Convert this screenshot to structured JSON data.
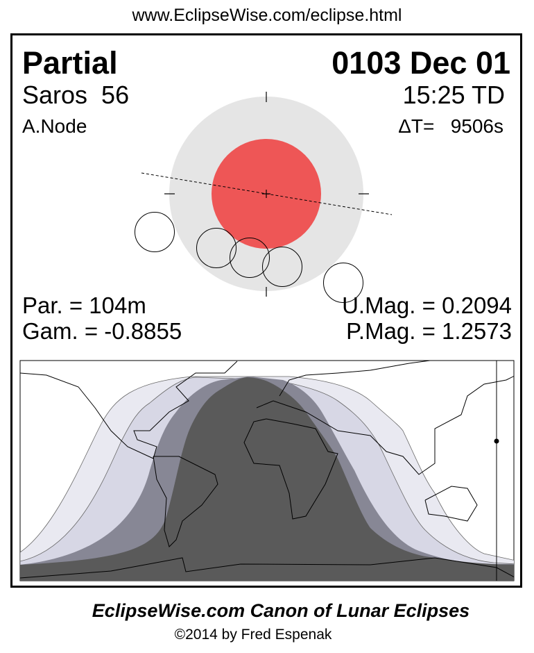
{
  "header": {
    "url": "www.EclipseWise.com/eclipse.html"
  },
  "eclipse": {
    "type": "Partial",
    "date": "0103 Dec 01",
    "saros": "Saros  56",
    "time": "15:25 TD",
    "node": "A.Node",
    "delta_t": "ΔT=   9506s",
    "partial_duration": "Par. = 104m",
    "gamma": "Gam. = -0.8855",
    "umbral_magnitude": "U.Mag. = 0.2094",
    "penumbral_magnitude": "P.Mag. = 1.2573"
  },
  "colors": {
    "umbra": "#ee5656",
    "penumbra": "#e5e5e5",
    "map_penumbral_outer": "#e9e9f1",
    "map_penumbral_inner": "#d7d7e5",
    "map_partial": "#878795",
    "map_umbral": "#5a5a5a"
  },
  "footer": {
    "title": "EclipseWise.com Canon of Lunar Eclipses",
    "copyright": "©2014 by Fred Espenak"
  }
}
